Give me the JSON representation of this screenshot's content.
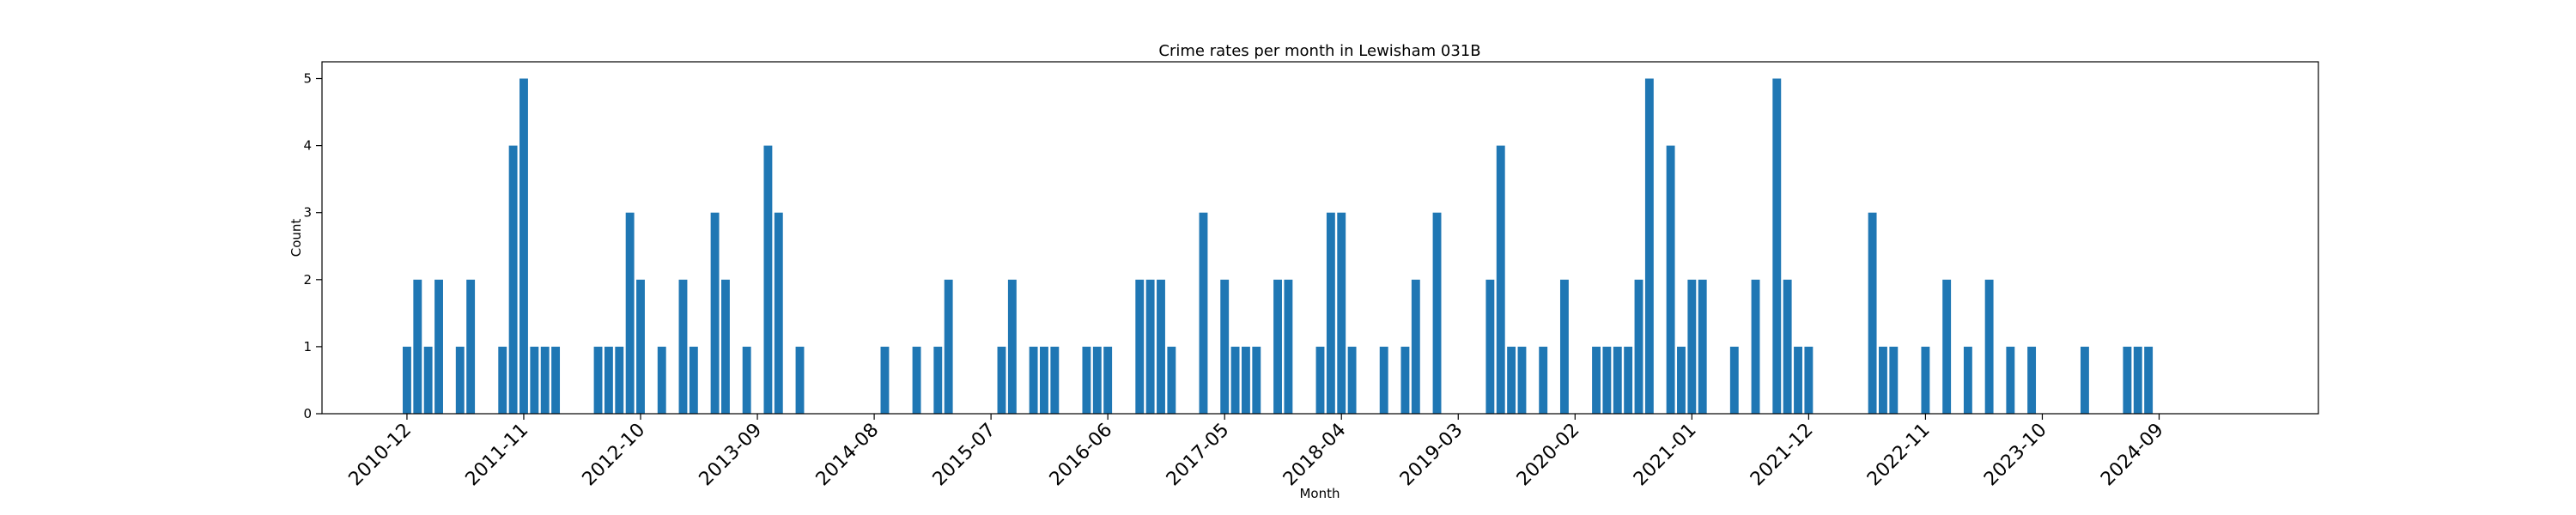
{
  "chart_data": {
    "type": "bar",
    "title": "Crime rates per month in Lewisham 031B",
    "xlabel": "Month",
    "ylabel": "Count",
    "ylim": [
      0,
      5.25
    ],
    "x_range": [
      "2010-04",
      "2025-12"
    ],
    "yticks": [
      "0",
      "1",
      "2",
      "3",
      "4",
      "5"
    ],
    "xticks": [
      "2010-12",
      "2011-11",
      "2012-10",
      "2013-09",
      "2014-08",
      "2015-07",
      "2016-06",
      "2017-05",
      "2018-04",
      "2019-03",
      "2020-02",
      "2021-01",
      "2021-12",
      "2022-11",
      "2023-10",
      "2024-09"
    ],
    "bar_color": "#1f77b4",
    "grid": false,
    "series": [
      {
        "points": [
          [
            "2010-12",
            1
          ],
          [
            "2011-01",
            2
          ],
          [
            "2011-02",
            1
          ],
          [
            "2011-03",
            2
          ],
          [
            "2011-05",
            1
          ],
          [
            "2011-06",
            2
          ],
          [
            "2011-09",
            1
          ],
          [
            "2011-10",
            4
          ],
          [
            "2011-11",
            5
          ],
          [
            "2011-12",
            1
          ],
          [
            "2012-01",
            1
          ],
          [
            "2012-02",
            1
          ],
          [
            "2012-06",
            1
          ],
          [
            "2012-07",
            1
          ],
          [
            "2012-08",
            1
          ],
          [
            "2012-09",
            3
          ],
          [
            "2012-10",
            2
          ],
          [
            "2012-12",
            1
          ],
          [
            "2013-02",
            2
          ],
          [
            "2013-03",
            1
          ],
          [
            "2013-05",
            3
          ],
          [
            "2013-06",
            2
          ],
          [
            "2013-08",
            1
          ],
          [
            "2013-10",
            4
          ],
          [
            "2013-11",
            3
          ],
          [
            "2014-01",
            1
          ],
          [
            "2014-09",
            1
          ],
          [
            "2014-12",
            1
          ],
          [
            "2015-02",
            1
          ],
          [
            "2015-03",
            2
          ],
          [
            "2015-08",
            1
          ],
          [
            "2015-09",
            2
          ],
          [
            "2015-11",
            1
          ],
          [
            "2015-12",
            1
          ],
          [
            "2016-01",
            1
          ],
          [
            "2016-04",
            1
          ],
          [
            "2016-05",
            1
          ],
          [
            "2016-06",
            1
          ],
          [
            "2016-09",
            2
          ],
          [
            "2016-10",
            2
          ],
          [
            "2016-11",
            2
          ],
          [
            "2016-12",
            1
          ],
          [
            "2017-03",
            3
          ],
          [
            "2017-05",
            2
          ],
          [
            "2017-06",
            1
          ],
          [
            "2017-07",
            1
          ],
          [
            "2017-08",
            1
          ],
          [
            "2017-10",
            2
          ],
          [
            "2017-11",
            2
          ],
          [
            "2018-02",
            1
          ],
          [
            "2018-03",
            3
          ],
          [
            "2018-04",
            3
          ],
          [
            "2018-05",
            1
          ],
          [
            "2018-08",
            1
          ],
          [
            "2018-10",
            1
          ],
          [
            "2018-11",
            2
          ],
          [
            "2019-01",
            3
          ],
          [
            "2019-06",
            2
          ],
          [
            "2019-07",
            4
          ],
          [
            "2019-08",
            1
          ],
          [
            "2019-09",
            1
          ],
          [
            "2019-11",
            1
          ],
          [
            "2020-01",
            2
          ],
          [
            "2020-04",
            1
          ],
          [
            "2020-05",
            1
          ],
          [
            "2020-06",
            1
          ],
          [
            "2020-07",
            1
          ],
          [
            "2020-08",
            2
          ],
          [
            "2020-09",
            5
          ],
          [
            "2020-11",
            4
          ],
          [
            "2020-12",
            1
          ],
          [
            "2021-01",
            2
          ],
          [
            "2021-02",
            2
          ],
          [
            "2021-05",
            1
          ],
          [
            "2021-07",
            2
          ],
          [
            "2021-09",
            5
          ],
          [
            "2021-10",
            2
          ],
          [
            "2021-11",
            1
          ],
          [
            "2021-12",
            1
          ],
          [
            "2022-06",
            3
          ],
          [
            "2022-07",
            1
          ],
          [
            "2022-08",
            1
          ],
          [
            "2022-11",
            1
          ],
          [
            "2023-01",
            2
          ],
          [
            "2023-03",
            1
          ],
          [
            "2023-05",
            2
          ],
          [
            "2023-07",
            1
          ],
          [
            "2023-09",
            1
          ],
          [
            "2024-02",
            1
          ],
          [
            "2024-06",
            1
          ],
          [
            "2024-07",
            1
          ],
          [
            "2024-08",
            1
          ]
        ]
      }
    ]
  }
}
